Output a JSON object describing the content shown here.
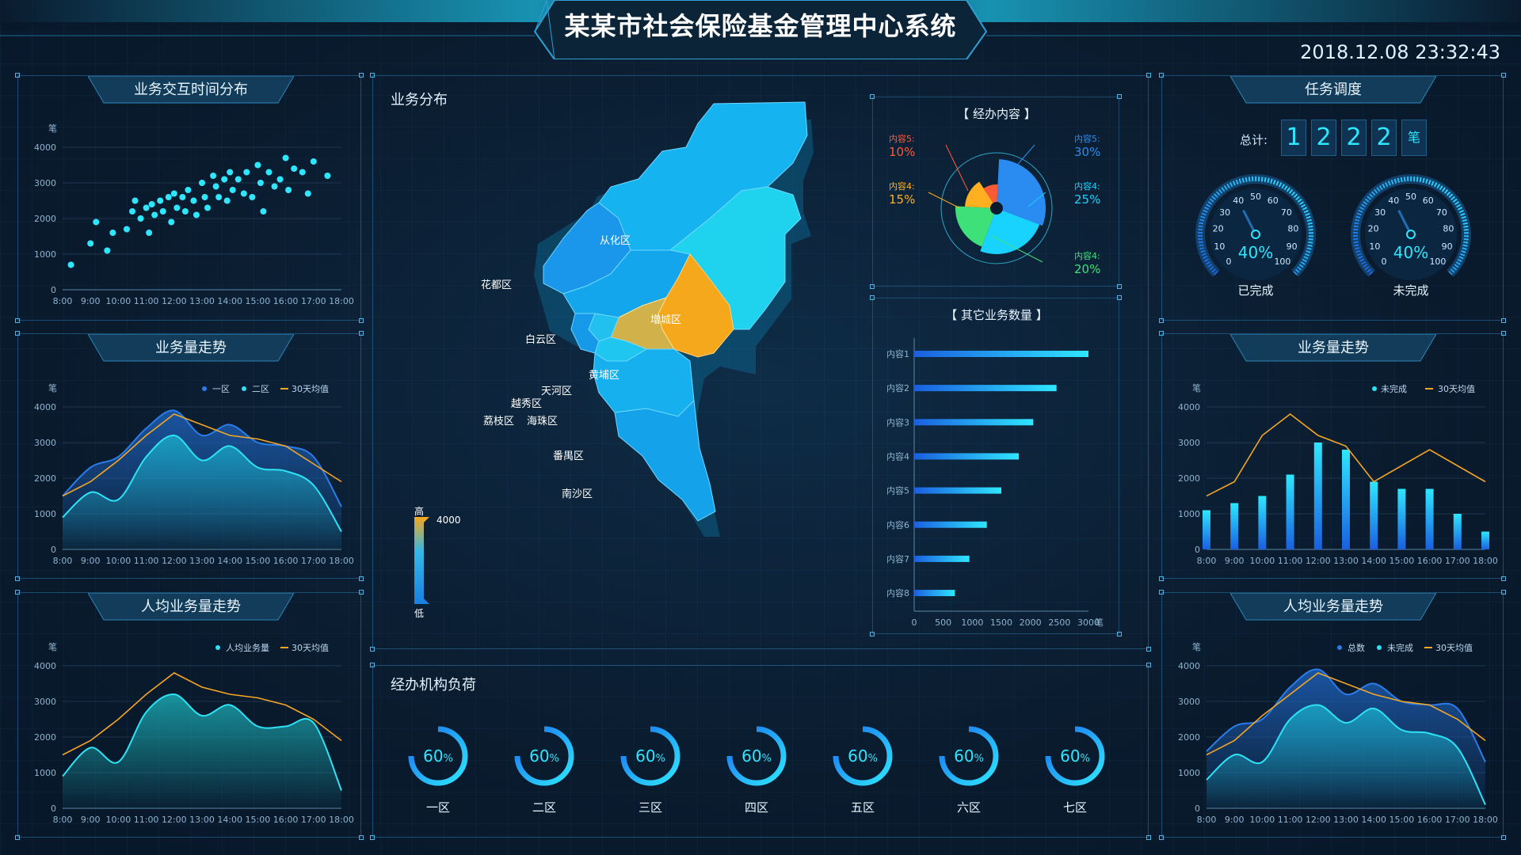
{
  "header": {
    "title": "某某市社会保险基金管理中心系统",
    "datetime": "2018.12.08   23:32:43"
  },
  "left1": {
    "title": "业务交互时间分布",
    "unit": "笔",
    "y_ticks": [
      "0",
      "1000",
      "2000",
      "3000",
      "4000"
    ],
    "x_ticks": [
      "8:00",
      "9:00",
      "10:00",
      "11:00",
      "12:00",
      "13:00",
      "14:00",
      "15:00",
      "16:00",
      "17:00",
      "18:00"
    ]
  },
  "left2": {
    "title": "业务量走势",
    "unit": "笔",
    "legend": [
      "一区",
      "二区",
      "30天均值"
    ],
    "y_ticks": [
      "0",
      "1000",
      "2000",
      "3000",
      "4000"
    ],
    "x_ticks": [
      "8:00",
      "9:00",
      "10:00",
      "11:00",
      "12:00",
      "13:00",
      "14:00",
      "15:00",
      "16:00",
      "17:00",
      "18:00"
    ]
  },
  "left3": {
    "title": "人均业务量走势",
    "unit": "笔",
    "legend": [
      "人均业务量",
      "30天均值"
    ],
    "y_ticks": [
      "0",
      "1000",
      "2000",
      "3000",
      "4000"
    ],
    "x_ticks": [
      "8:00",
      "9:00",
      "10:00",
      "11:00",
      "12:00",
      "13:00",
      "14:00",
      "15:00",
      "16:00",
      "17:00",
      "18:00"
    ]
  },
  "center": {
    "map_title": "业务分布",
    "districts": [
      "从化区",
      "花都区",
      "增城区",
      "白云区",
      "黄埔区",
      "天河区",
      "越秀区",
      "荔枝区",
      "海珠区",
      "番禺区",
      "南沙区"
    ],
    "scale_high": "高",
    "scale_low": "低",
    "scale_max": "4000",
    "pie_title": "【 经办内容 】",
    "pie": [
      {
        "label": "内容5:",
        "value": "10%",
        "color": "#ff5a36"
      },
      {
        "label": "内容4:",
        "value": "15%",
        "color": "#ffb020"
      },
      {
        "label": "内容5:",
        "value": "30%",
        "color": "#2a8cf0"
      },
      {
        "label": "内容4:",
        "value": "25%",
        "color": "#19d3ff"
      },
      {
        "label": "内容4:",
        "value": "20%",
        "color": "#3ee07a"
      }
    ],
    "bar_title": "【 其它业务数量 】",
    "bars": [
      "内容1",
      "内容2",
      "内容3",
      "内容4",
      "内容5",
      "内容6",
      "内容7",
      "内容8"
    ],
    "bar_x_ticks": [
      "0",
      "500",
      "1000",
      "1500",
      "2000",
      "2500",
      "3000"
    ],
    "bar_unit": "笔"
  },
  "load": {
    "title": "经办机构负荷",
    "items": [
      {
        "name": "一区",
        "value": "60",
        "pct": "%"
      },
      {
        "name": "二区",
        "value": "60",
        "pct": "%"
      },
      {
        "name": "三区",
        "value": "60",
        "pct": "%"
      },
      {
        "name": "四区",
        "value": "60",
        "pct": "%"
      },
      {
        "name": "五区",
        "value": "60",
        "pct": "%"
      },
      {
        "name": "六区",
        "value": "60",
        "pct": "%"
      },
      {
        "name": "七区",
        "value": "60",
        "pct": "%"
      }
    ]
  },
  "right1": {
    "title": "任务调度",
    "total_label": "总计:",
    "digits": [
      "1",
      "2",
      "2",
      "2"
    ],
    "total_unit": "笔",
    "gauges": [
      {
        "value": "40%",
        "label": "已完成",
        "ticks": [
          "0",
          "10",
          "20",
          "30",
          "40",
          "50",
          "60",
          "70",
          "80",
          "90",
          "100"
        ]
      },
      {
        "value": "40%",
        "label": "未完成",
        "ticks": [
          "0",
          "10",
          "20",
          "30",
          "40",
          "50",
          "60",
          "70",
          "80",
          "90",
          "100"
        ]
      }
    ]
  },
  "right2": {
    "title": "业务量走势",
    "unit": "笔",
    "legend": [
      "未完成",
      "30天均值"
    ],
    "y_ticks": [
      "0",
      "1000",
      "2000",
      "3000",
      "4000"
    ],
    "x_ticks": [
      "8:00",
      "9:00",
      "10:00",
      "11:00",
      "12:00",
      "13:00",
      "14:00",
      "15:00",
      "16:00",
      "17:00",
      "18:00"
    ]
  },
  "right3": {
    "title": "人均业务量走势",
    "unit": "笔",
    "legend": [
      "总数",
      "未完成",
      "30天均值"
    ],
    "y_ticks": [
      "0",
      "1000",
      "2000",
      "3000",
      "4000"
    ],
    "x_ticks": [
      "8:00",
      "9:00",
      "10:00",
      "11:00",
      "12:00",
      "13:00",
      "14:00",
      "15:00",
      "16:00",
      "17:00",
      "18:00"
    ]
  },
  "chart_data": [
    {
      "type": "scatter",
      "title": "业务交互时间分布",
      "ylabel": "笔",
      "ylim": [
        0,
        4000
      ],
      "xlim": [
        "8:00",
        "18:00"
      ],
      "points": [
        [
          8.3,
          700
        ],
        [
          9,
          1300
        ],
        [
          9.2,
          1900
        ],
        [
          9.6,
          1100
        ],
        [
          9.8,
          1600
        ],
        [
          10.3,
          1700
        ],
        [
          10.5,
          2200
        ],
        [
          10.6,
          2500
        ],
        [
          10.8,
          2000
        ],
        [
          11,
          2300
        ],
        [
          11.1,
          1600
        ],
        [
          11.2,
          2400
        ],
        [
          11.3,
          2100
        ],
        [
          11.5,
          2500
        ],
        [
          11.6,
          2200
        ],
        [
          11.8,
          2600
        ],
        [
          11.9,
          1900
        ],
        [
          12,
          2700
        ],
        [
          12.1,
          2300
        ],
        [
          12.3,
          2600
        ],
        [
          12.4,
          2200
        ],
        [
          12.5,
          2800
        ],
        [
          12.7,
          2500
        ],
        [
          12.8,
          2100
        ],
        [
          13,
          3000
        ],
        [
          13.1,
          2600
        ],
        [
          13.2,
          2300
        ],
        [
          13.4,
          3200
        ],
        [
          13.5,
          2900
        ],
        [
          13.6,
          2600
        ],
        [
          13.8,
          3100
        ],
        [
          13.9,
          2500
        ],
        [
          14,
          3300
        ],
        [
          14.1,
          2800
        ],
        [
          14.3,
          3100
        ],
        [
          14.5,
          2700
        ],
        [
          14.6,
          3300
        ],
        [
          14.8,
          2600
        ],
        [
          15,
          3500
        ],
        [
          15.1,
          3000
        ],
        [
          15.2,
          2200
        ],
        [
          15.4,
          3300
        ],
        [
          15.6,
          2900
        ],
        [
          15.8,
          3100
        ],
        [
          16,
          3700
        ],
        [
          16.1,
          2800
        ],
        [
          16.3,
          3400
        ],
        [
          16.6,
          3300
        ],
        [
          16.8,
          2700
        ],
        [
          17,
          3600
        ],
        [
          17.5,
          3200
        ]
      ]
    },
    {
      "type": "area",
      "title": "业务量走势",
      "ylabel": "笔",
      "ylim": [
        0,
        4000
      ],
      "x": [
        "8:00",
        "9:00",
        "10:00",
        "11:00",
        "12:00",
        "13:00",
        "14:00",
        "15:00",
        "16:00",
        "17:00",
        "18:00"
      ],
      "series": [
        {
          "name": "一区",
          "values": [
            1500,
            2300,
            2600,
            3400,
            3900,
            3200,
            3500,
            3000,
            2900,
            2600,
            1200
          ]
        },
        {
          "name": "二区",
          "values": [
            900,
            1600,
            1400,
            2600,
            3200,
            2500,
            2900,
            2300,
            2200,
            1800,
            500
          ]
        },
        {
          "name": "30天均值",
          "values": [
            1500,
            1900,
            2500,
            3200,
            3800,
            3500,
            3200,
            3100,
            2900,
            2400,
            1900
          ]
        }
      ]
    },
    {
      "type": "area",
      "title": "人均业务量走势",
      "ylabel": "笔",
      "ylim": [
        0,
        4000
      ],
      "x": [
        "8:00",
        "9:00",
        "10:00",
        "11:00",
        "12:00",
        "13:00",
        "14:00",
        "15:00",
        "16:00",
        "17:00",
        "18:00"
      ],
      "series": [
        {
          "name": "人均业务量",
          "values": [
            900,
            1700,
            1300,
            2700,
            3200,
            2600,
            2900,
            2300,
            2300,
            2400,
            500
          ]
        },
        {
          "name": "30天均值",
          "values": [
            1500,
            1900,
            2500,
            3200,
            3800,
            3400,
            3200,
            3100,
            2900,
            2500,
            1900
          ]
        }
      ]
    },
    {
      "type": "pie",
      "title": "【 经办内容 】",
      "labels": [
        "内容5",
        "内容4",
        "内容5",
        "内容4",
        "内容4"
      ],
      "values": [
        10,
        15,
        30,
        25,
        20
      ]
    },
    {
      "type": "bar",
      "title": "【 其它业务数量 】",
      "orientation": "horizontal",
      "categories": [
        "内容1",
        "内容2",
        "内容3",
        "内容4",
        "内容5",
        "内容6",
        "内容7",
        "内容8"
      ],
      "values": [
        3000,
        2450,
        2050,
        1800,
        1500,
        1250,
        950,
        700
      ],
      "xlim": [
        0,
        3000
      ],
      "unit": "笔"
    },
    {
      "type": "bar",
      "title": "业务量走势",
      "ylabel": "笔",
      "ylim": [
        0,
        4000
      ],
      "categories": [
        "8:00",
        "9:00",
        "10:00",
        "11:00",
        "12:00",
        "13:00",
        "14:00",
        "15:00",
        "16:00",
        "17:00",
        "18:00"
      ],
      "series": [
        {
          "name": "未完成",
          "values": [
            1100,
            1300,
            1500,
            2100,
            3000,
            2800,
            1900,
            1700,
            1700,
            1000,
            500
          ]
        },
        {
          "name": "30天均值",
          "values": [
            1500,
            1900,
            3200,
            3800,
            3200,
            2900,
            1900,
            null,
            null,
            null,
            null
          ]
        }
      ]
    },
    {
      "type": "area",
      "title": "人均业务量走势",
      "ylabel": "笔",
      "ylim": [
        0,
        4000
      ],
      "x": [
        "8:00",
        "9:00",
        "10:00",
        "11:00",
        "12:00",
        "13:00",
        "14:00",
        "15:00",
        "16:00",
        "17:00",
        "18:00"
      ],
      "series": [
        {
          "name": "总数",
          "values": [
            1600,
            2300,
            2500,
            3400,
            3900,
            3200,
            3500,
            3000,
            2900,
            2800,
            1300
          ]
        },
        {
          "name": "未完成",
          "values": [
            800,
            1500,
            1300,
            2500,
            2900,
            2400,
            2800,
            2200,
            2100,
            1700,
            100
          ]
        },
        {
          "name": "30天均值",
          "values": [
            1500,
            1900,
            2600,
            3200,
            3800,
            3500,
            3200,
            3000,
            2900,
            2500,
            1900
          ]
        }
      ]
    }
  ]
}
